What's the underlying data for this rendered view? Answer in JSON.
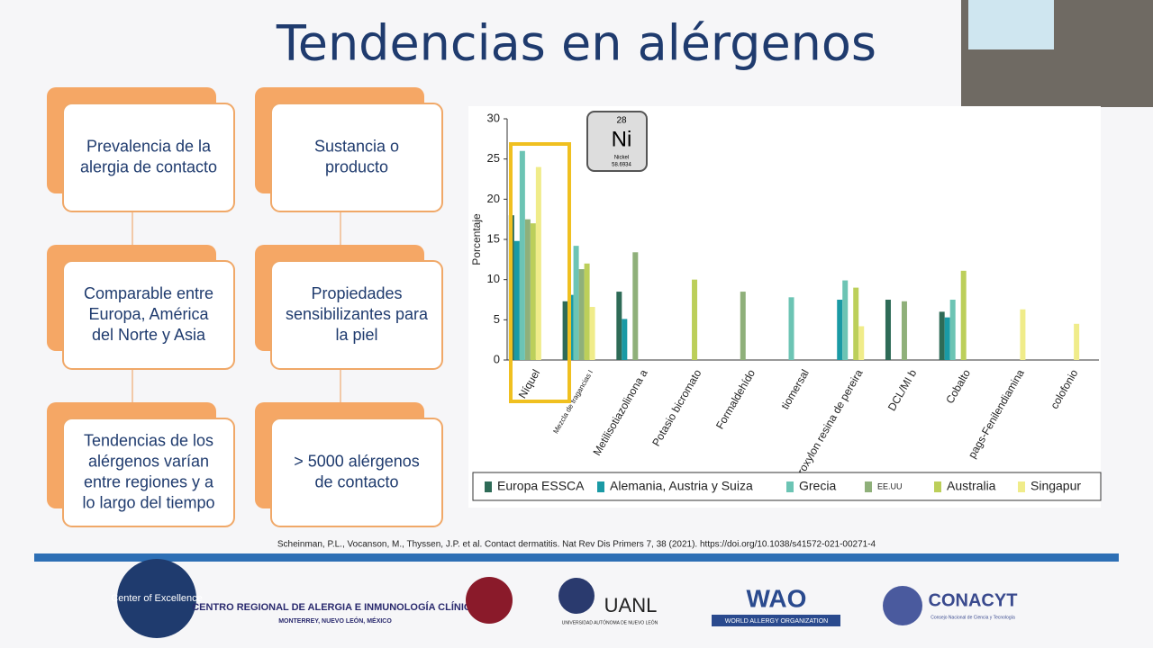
{
  "slide": {
    "title": "Tendencias en alérgenos",
    "boxes": [
      [
        "Prevalencia de la",
        "alergia de contacto"
      ],
      [
        "Sustancia o",
        "producto"
      ],
      [
        "Comparable entre",
        "Europa, América",
        "del Norte y Asia"
      ],
      [
        "Propiedades",
        "sensibilizantes para",
        "la piel"
      ],
      [
        "Tendencias de los",
        "alérgenos varían",
        "entre regiones y a",
        "lo largo del tiempo"
      ],
      [
        "> 5000 alérgenos",
        "de contacto"
      ]
    ],
    "element": {
      "number": "28",
      "symbol": "Ni",
      "name": "Nickel",
      "mass": "58.6934"
    },
    "citation": "Scheinman, P.L., Vocanson, M., Thyssen, J.P. et al. Contact dermatitis. Nat Rev Dis Primers 7, 38 (2021). https://doi.org/10.1038/s41572-021-00271-4",
    "logos": [
      "Center of Excellence",
      "CENTRO REGIONAL DE ALERGIA E INMUNOLOGÍA CLÍNICA",
      "MONTERREY, NUEVO LEÓN, MÉXICO",
      "UANL",
      "UNIVERSIDAD AUTÓNOMA DE NUEVO LEÓN",
      "WAO",
      "WORLD ALLERGY ORGANIZATION",
      "CONACYT",
      "Consejo Nacional de Ciencia y Tecnología"
    ]
  },
  "chart_data": {
    "type": "bar",
    "y_label": "Porcentaje",
    "categories": [
      "Níquel",
      "Mezcla de fragancias I",
      "Metilisotiazolinona a",
      "Potasio bicromato",
      "Formaldehído",
      "tiomersal",
      "Myroxylon resina de pereira",
      "DCL/MI b",
      "Cobalto",
      "pags-Fenilendiamina",
      "colofonio"
    ],
    "series": [
      {
        "name": "Europa ESSCA",
        "color": "#2e6b57",
        "values": [
          18,
          7.3,
          8.5,
          null,
          null,
          null,
          null,
          7.5,
          6,
          null,
          null
        ]
      },
      {
        "name": "Alemania, Austria y Suiza",
        "color": "#1a9aa5",
        "values": [
          14.8,
          8.1,
          5.1,
          null,
          null,
          null,
          7.5,
          null,
          5.3,
          null,
          null
        ]
      },
      {
        "name": "Grecia",
        "color": "#6cc4b4",
        "values": [
          26,
          14.2,
          null,
          null,
          null,
          7.8,
          9.9,
          null,
          7.5,
          null,
          null
        ]
      },
      {
        "name": "EE.UU",
        "color": "#8fb07a",
        "values": [
          17.5,
          11.3,
          13.4,
          null,
          8.5,
          null,
          null,
          7.3,
          null,
          null,
          null
        ]
      },
      {
        "name": "Australia",
        "color": "#bccf5a",
        "values": [
          17,
          12,
          null,
          10,
          null,
          null,
          9,
          null,
          11.1,
          null,
          null
        ]
      },
      {
        "name": "Singapur",
        "color": "#f0ec8a",
        "values": [
          24,
          6.6,
          null,
          null,
          null,
          null,
          4.2,
          null,
          null,
          6.3,
          4.5
        ]
      }
    ],
    "ylim": [
      0,
      30
    ],
    "yticks": [
      0,
      5,
      10,
      15,
      20,
      25,
      30
    ]
  }
}
